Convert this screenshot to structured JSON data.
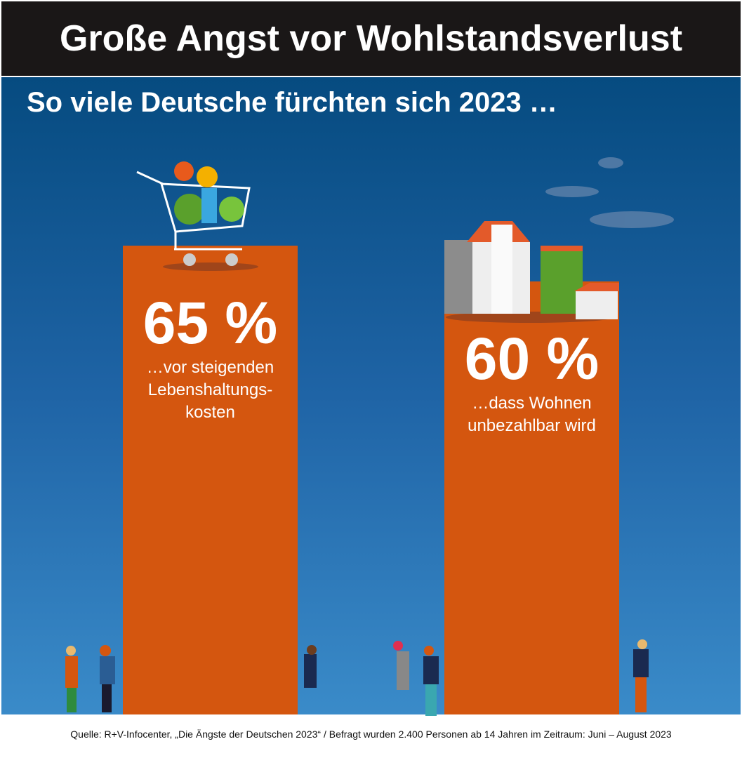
{
  "chart_data": {
    "type": "bar",
    "title": "Große Angst vor Wohlstandsverlust",
    "subtitle": "So viele Deutsche fürchten sich 2023 …",
    "categories": [
      "…vor steigenden\nLebenshaltungs-\nkosten",
      "…dass Wohnen\nunbezahlbar wird"
    ],
    "values": [
      65,
      60
    ],
    "value_labels": [
      "65 %",
      "60 %"
    ],
    "color": "#d4560f",
    "source": "Quelle: R+V-Infocenter, „Die Ängste der Deutschen 2023“  /  Befragt wurden 2.400 Personen ab 14 Jahren im Zeitraum: Juni – August 2023"
  }
}
